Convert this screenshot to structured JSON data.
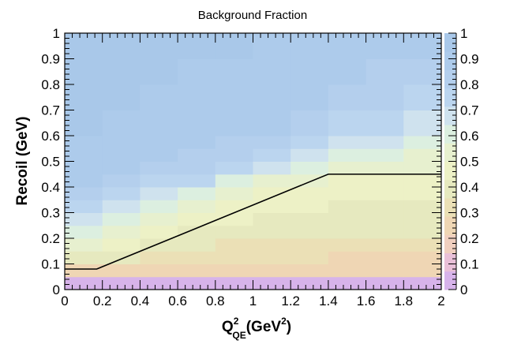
{
  "chart_data": {
    "type": "heatmap",
    "title": "Background Fraction",
    "xlabel": {
      "main": "Q",
      "sup": "2",
      "sub": "QE",
      "unit_open": "(GeV",
      "unit_sup": "2",
      "unit_close": ")"
    },
    "ylabel": "Recoil (GeV)",
    "xlim": [
      0,
      2
    ],
    "ylim": [
      0,
      1
    ],
    "zlim": [
      0,
      1
    ],
    "x_ticks": [
      "0",
      "0.2",
      "0.4",
      "0.6",
      "0.8",
      "1",
      "1.2",
      "1.4",
      "1.6",
      "1.8",
      "2"
    ],
    "y_ticks": [
      "0",
      "0.1",
      "0.2",
      "0.3",
      "0.4",
      "0.5",
      "0.6",
      "0.7",
      "0.8",
      "0.9",
      "1"
    ],
    "z_ticks": [
      "0",
      "0.1",
      "0.2",
      "0.3",
      "0.4",
      "0.5",
      "0.6",
      "0.7",
      "0.8",
      "0.9",
      "1"
    ],
    "grid": false,
    "colorbar": "right",
    "bins": {
      "x_edges": [
        0,
        0.2,
        0.4,
        0.6,
        0.8,
        1.0,
        1.2,
        1.4,
        1.6,
        1.8,
        2.0
      ],
      "y_edges": [
        0,
        0.05,
        0.1,
        0.15,
        0.2,
        0.25,
        0.3,
        0.35,
        0.4,
        0.45,
        0.5,
        0.55,
        0.6,
        0.7,
        0.8,
        0.9,
        1.0
      ],
      "values": [
        [
          0.06,
          0.06,
          0.05,
          0.06,
          0.06,
          0.05,
          0.06,
          0.06,
          0.05,
          0.06
        ],
        [
          0.28,
          0.27,
          0.25,
          0.24,
          0.24,
          0.23,
          0.23,
          0.22,
          0.22,
          0.24
        ],
        [
          0.42,
          0.36,
          0.33,
          0.31,
          0.3,
          0.29,
          0.29,
          0.28,
          0.27,
          0.26
        ],
        [
          0.55,
          0.45,
          0.4,
          0.37,
          0.35,
          0.34,
          0.33,
          0.32,
          0.31,
          0.31
        ],
        [
          0.63,
          0.53,
          0.45,
          0.41,
          0.39,
          0.38,
          0.37,
          0.36,
          0.36,
          0.36
        ],
        [
          0.71,
          0.62,
          0.52,
          0.45,
          0.43,
          0.41,
          0.4,
          0.39,
          0.39,
          0.39
        ],
        [
          0.77,
          0.7,
          0.62,
          0.53,
          0.46,
          0.44,
          0.43,
          0.42,
          0.41,
          0.42
        ],
        [
          0.82,
          0.77,
          0.71,
          0.63,
          0.55,
          0.48,
          0.45,
          0.44,
          0.43,
          0.44
        ],
        [
          0.86,
          0.82,
          0.78,
          0.72,
          0.64,
          0.56,
          0.5,
          0.46,
          0.46,
          0.46
        ],
        [
          0.89,
          0.86,
          0.83,
          0.79,
          0.74,
          0.66,
          0.59,
          0.55,
          0.52,
          0.51
        ],
        [
          0.91,
          0.89,
          0.87,
          0.84,
          0.8,
          0.75,
          0.68,
          0.61,
          0.58,
          0.57
        ],
        [
          0.92,
          0.9,
          0.89,
          0.87,
          0.85,
          0.81,
          0.76,
          0.71,
          0.67,
          0.63
        ],
        [
          0.93,
          0.92,
          0.91,
          0.89,
          0.88,
          0.86,
          0.82,
          0.78,
          0.74,
          0.7
        ],
        [
          0.94,
          0.93,
          0.92,
          0.91,
          0.9,
          0.89,
          0.87,
          0.84,
          0.81,
          0.78
        ],
        [
          0.95,
          0.94,
          0.93,
          0.92,
          0.92,
          0.91,
          0.9,
          0.88,
          0.85,
          0.83
        ],
        [
          0.95,
          0.95,
          0.94,
          0.94,
          0.93,
          0.92,
          0.91,
          0.9,
          0.88,
          0.86
        ]
      ]
    },
    "cut_line": {
      "x": [
        0,
        0.17,
        1.4,
        2.0
      ],
      "y": [
        0.08,
        0.08,
        0.45,
        0.45
      ]
    },
    "colorscale": [
      "#d7b3ea",
      "#e9c0d8",
      "#f0cfbf",
      "#efd6b4",
      "#ebe0b6",
      "#e6e9bf",
      "#edf1c6",
      "#e7f0cf",
      "#dcefe0",
      "#cfe2ee",
      "#bbd5ef",
      "#b4cfed",
      "#adcbeb",
      "#a9c8e9"
    ]
  }
}
